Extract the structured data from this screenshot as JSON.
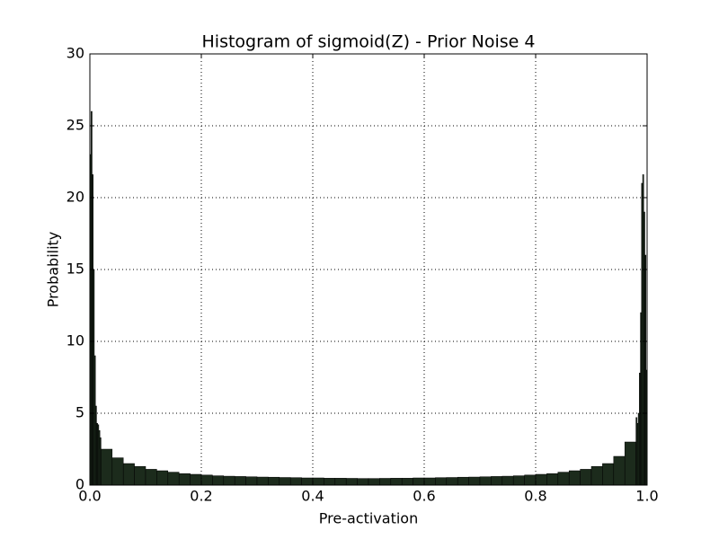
{
  "chart_data": {
    "type": "histogram",
    "title": "Histogram of sigmoid(Z) - Prior Noise 4",
    "xlabel": "Pre-activation",
    "ylabel": "Probability",
    "bins": [
      0,
      0.002,
      0.004,
      0.006,
      0.008,
      0.01,
      0.012,
      0.014,
      0.016,
      0.018,
      0.02,
      0.04,
      0.06,
      0.08,
      0.1,
      0.12,
      0.14,
      0.16,
      0.18,
      0.2,
      0.22,
      0.24,
      0.26,
      0.28,
      0.3,
      0.32,
      0.34,
      0.36,
      0.38,
      0.4,
      0.42,
      0.44,
      0.46,
      0.48,
      0.5,
      0.52,
      0.54,
      0.56,
      0.58,
      0.6,
      0.62,
      0.64,
      0.66,
      0.68,
      0.7,
      0.72,
      0.74,
      0.76,
      0.78,
      0.8,
      0.82,
      0.84,
      0.86,
      0.88,
      0.9,
      0.92,
      0.94,
      0.96,
      0.98,
      0.982,
      0.984,
      0.986,
      0.988,
      0.99,
      0.992,
      0.994,
      0.996,
      0.998,
      1
    ],
    "values": [
      23,
      26,
      21.6,
      15,
      9,
      5.5,
      4.3,
      4.2,
      3.8,
      3.3,
      2.5,
      1.9,
      1.5,
      1.3,
      1.1,
      1.0,
      0.9,
      0.8,
      0.75,
      0.7,
      0.65,
      0.62,
      0.6,
      0.58,
      0.56,
      0.55,
      0.53,
      0.52,
      0.5,
      0.5,
      0.48,
      0.48,
      0.47,
      0.46,
      0.46,
      0.47,
      0.48,
      0.48,
      0.5,
      0.5,
      0.52,
      0.53,
      0.55,
      0.56,
      0.58,
      0.6,
      0.62,
      0.65,
      0.7,
      0.75,
      0.8,
      0.9,
      1.0,
      1.1,
      1.3,
      1.5,
      2.0,
      3.0,
      4.7,
      4.3,
      5.0,
      7.8,
      12,
      21,
      21.6,
      19,
      16,
      8
    ],
    "color": "#1c2b1c",
    "xlim": [
      0,
      1
    ],
    "xticks": [
      {
        "value": 0,
        "label": "0.0"
      },
      0.2,
      0.4,
      0.6,
      0.8,
      {
        "value": 1,
        "label": "1.0"
      }
    ],
    "ylim": [
      0,
      30
    ],
    "yticks": [
      0,
      5,
      10,
      15,
      20,
      25,
      30
    ],
    "grid": true
  }
}
